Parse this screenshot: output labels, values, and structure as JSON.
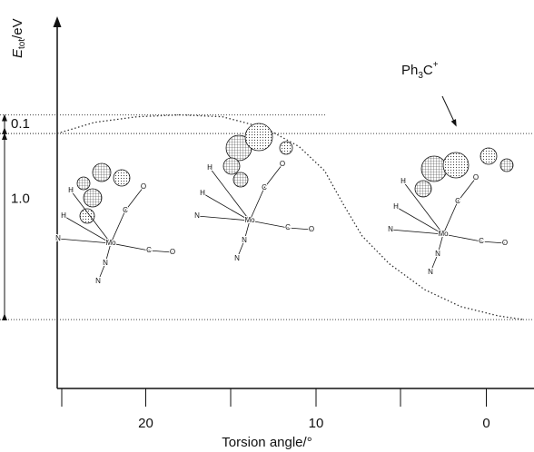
{
  "chart_data": {
    "type": "line",
    "ylabel": {
      "symbol": "E",
      "subscript": "tot",
      "unit": "/eV"
    },
    "xlabel": "Torsion angle/°",
    "x": [
      25.2,
      23,
      20.5,
      18,
      15.5,
      13,
      11,
      9.5,
      8.4,
      7.3,
      5.7,
      3.6,
      1.5,
      -0.7,
      -2.2
    ],
    "series": [
      {
        "color": "#333333",
        "values": [
          1.0,
          1.06,
          1.09,
          1.1,
          1.09,
          1.03,
          0.93,
          0.8,
          0.62,
          0.45,
          0.3,
          0.16,
          0.07,
          0.02,
          0.0
        ]
      }
    ],
    "xlim": [
      25.2,
      -2.8
    ],
    "ylim": [
      -0.37,
      1.61
    ],
    "xticks": [
      20,
      10,
      0
    ],
    "energy_brackets": [
      {
        "label": "0.1",
        "from": 1.0,
        "to": 1.1
      },
      {
        "label": "1.0",
        "from": 0.0,
        "to": 1.0
      }
    ],
    "annotation": {
      "text": "Ph",
      "subscript": "3",
      "rest": "C",
      "superscript": "+"
    },
    "molecules": [
      {
        "atoms": [
          "Mo",
          "N",
          "N",
          "N",
          "C",
          "O",
          "C",
          "O",
          "H",
          "H"
        ]
      },
      {
        "atoms": [
          "Mo",
          "N",
          "N",
          "N",
          "C",
          "O",
          "C",
          "O",
          "H",
          "H"
        ]
      },
      {
        "atoms": [
          "Mo",
          "N",
          "N",
          "N",
          "C",
          "O",
          "C",
          "O",
          "H",
          "H"
        ]
      }
    ]
  }
}
